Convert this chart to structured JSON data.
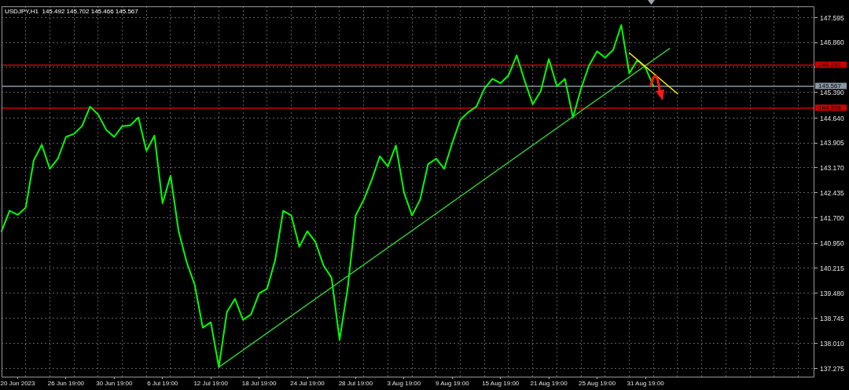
{
  "chart_data": {
    "type": "line",
    "title": "USDJPY,H1  145.492 145.702 145.466 145.567",
    "categories": [
      null,
      null,
      "20 Jun 2023",
      null,
      null,
      null,
      null,
      null,
      "26 Jun 19:00",
      null,
      null,
      null,
      null,
      null,
      "30 Jun 19:00",
      null,
      null,
      null,
      null,
      null,
      "6 Jul 19:00",
      null,
      null,
      null,
      null,
      null,
      "12 Jul 19:00",
      null,
      null,
      null,
      null,
      null,
      "18 Jul 19:00",
      null,
      null,
      null,
      null,
      null,
      "24 Jul 19:00",
      null,
      null,
      null,
      null,
      null,
      "28 Jul 19:00",
      null,
      null,
      null,
      null,
      null,
      "3 Aug 19:00",
      null,
      null,
      null,
      null,
      null,
      "9 Aug 19:00",
      null,
      null,
      null,
      null,
      null,
      "15 Aug 19:00",
      null,
      null,
      null,
      null,
      null,
      "21 Aug 19:00",
      null,
      null,
      null,
      null,
      null,
      "25 Aug 19:00",
      null,
      null,
      null,
      null,
      null,
      "31 Aug 19:00",
      null,
      null,
      null,
      null,
      null,
      null,
      null,
      null,
      null,
      null,
      null,
      null,
      null,
      null,
      null,
      null,
      null,
      null,
      null,
      null,
      null
    ],
    "ylim": [
      137.03,
      147.92
    ],
    "yticks": [
      147.595,
      {
        "value": 146.86,
        "label": "146.860"
      },
      {
        "value": 146.125,
        "label": null
      },
      {
        "value": 145.39,
        "label": "145.390"
      },
      {
        "value": 144.64,
        "label": "144.640"
      },
      143.905,
      {
        "value": 143.17,
        "label": "143.170"
      },
      142.435,
      {
        "value": 141.7,
        "label": "141.700"
      },
      {
        "value": 140.95,
        "label": "140.950"
      },
      140.215,
      {
        "value": 139.48,
        "label": "139.480"
      },
      138.745,
      {
        "value": 138.01,
        "label": "138.010"
      },
      137.275
    ],
    "grid": true,
    "series": [
      {
        "color": "#00ff00",
        "values": [
          141.31,
          141.91,
          141.79,
          142.0,
          143.39,
          143.85,
          143.14,
          143.44,
          144.08,
          144.17,
          144.4,
          144.97,
          144.74,
          144.29,
          144.08,
          144.4,
          144.42,
          144.65,
          143.67,
          144.12,
          142.13,
          142.94,
          141.31,
          140.4,
          139.73,
          138.47,
          138.63,
          137.31,
          138.93,
          139.32,
          138.7,
          138.86,
          139.48,
          139.62,
          140.46,
          141.91,
          141.77,
          140.85,
          141.31,
          140.99,
          140.3,
          139.94,
          138.11,
          139.62,
          141.77,
          142.23,
          142.82,
          143.51,
          143.21,
          143.83,
          142.45,
          141.77,
          142.23,
          143.28,
          143.44,
          143.14,
          143.9,
          144.58,
          144.81,
          144.97,
          145.5,
          145.79,
          145.66,
          145.89,
          146.48,
          145.73,
          145.04,
          145.43,
          146.37,
          145.57,
          145.79,
          144.65,
          145.5,
          146.18,
          146.6,
          146.41,
          146.64,
          147.37,
          145.95,
          146.34,
          146.12,
          145.57,
          null,
          null,
          null,
          null,
          null,
          null,
          null,
          null,
          null,
          null,
          null,
          null,
          null,
          null,
          null,
          null,
          null,
          null,
          null,
          null
        ]
      },
      {
        "color": "#33cc33",
        "values": [
          null,
          null,
          null,
          null,
          null,
          null,
          null,
          null,
          null,
          null,
          null,
          null,
          null,
          null,
          null,
          null,
          null,
          null,
          null,
          null,
          null,
          null,
          null,
          null,
          null,
          null,
          null,
          137.31,
          null,
          null,
          null,
          null,
          null,
          null,
          null,
          null,
          null,
          null,
          null,
          null,
          null,
          null,
          null,
          null,
          null,
          null,
          null,
          null,
          null,
          null,
          null,
          null,
          null,
          null,
          null,
          null,
          null,
          null,
          null,
          null,
          null,
          null,
          null,
          null,
          null,
          null,
          null,
          null,
          null,
          null,
          null,
          null,
          null,
          null,
          null,
          null,
          null,
          null,
          null,
          null,
          null,
          null,
          null,
          146.68,
          null,
          null,
          null,
          null,
          null,
          null,
          null,
          null,
          null,
          null,
          null,
          null,
          null,
          null,
          null,
          null,
          null,
          null
        ]
      },
      {
        "color": "#ffff00",
        "values": [
          null,
          null,
          null,
          null,
          null,
          null,
          null,
          null,
          null,
          null,
          null,
          null,
          null,
          null,
          null,
          null,
          null,
          null,
          null,
          null,
          null,
          null,
          null,
          null,
          null,
          null,
          null,
          null,
          null,
          null,
          null,
          null,
          null,
          null,
          null,
          null,
          null,
          null,
          null,
          null,
          null,
          null,
          null,
          null,
          null,
          null,
          null,
          null,
          null,
          null,
          null,
          null,
          null,
          null,
          null,
          null,
          null,
          null,
          null,
          null,
          null,
          null,
          null,
          null,
          null,
          null,
          null,
          null,
          null,
          null,
          null,
          null,
          null,
          null,
          null,
          null,
          null,
          null,
          146.55,
          null,
          null,
          null,
          null,
          null,
          145.35,
          null,
          null,
          null,
          null,
          null,
          null,
          null,
          null,
          null,
          null,
          null,
          null,
          null,
          null,
          null,
          null,
          null
        ]
      }
    ],
    "ref_lines": [
      {
        "axis": "y",
        "value": 146.191,
        "label": "146.191",
        "color": "#cc0000"
      },
      {
        "axis": "y",
        "value": 145.567,
        "label": "145.567",
        "color": "#8a96a3"
      },
      {
        "axis": "y",
        "value": 144.928,
        "label": "144.928",
        "color": "#cc0000"
      }
    ]
  }
}
